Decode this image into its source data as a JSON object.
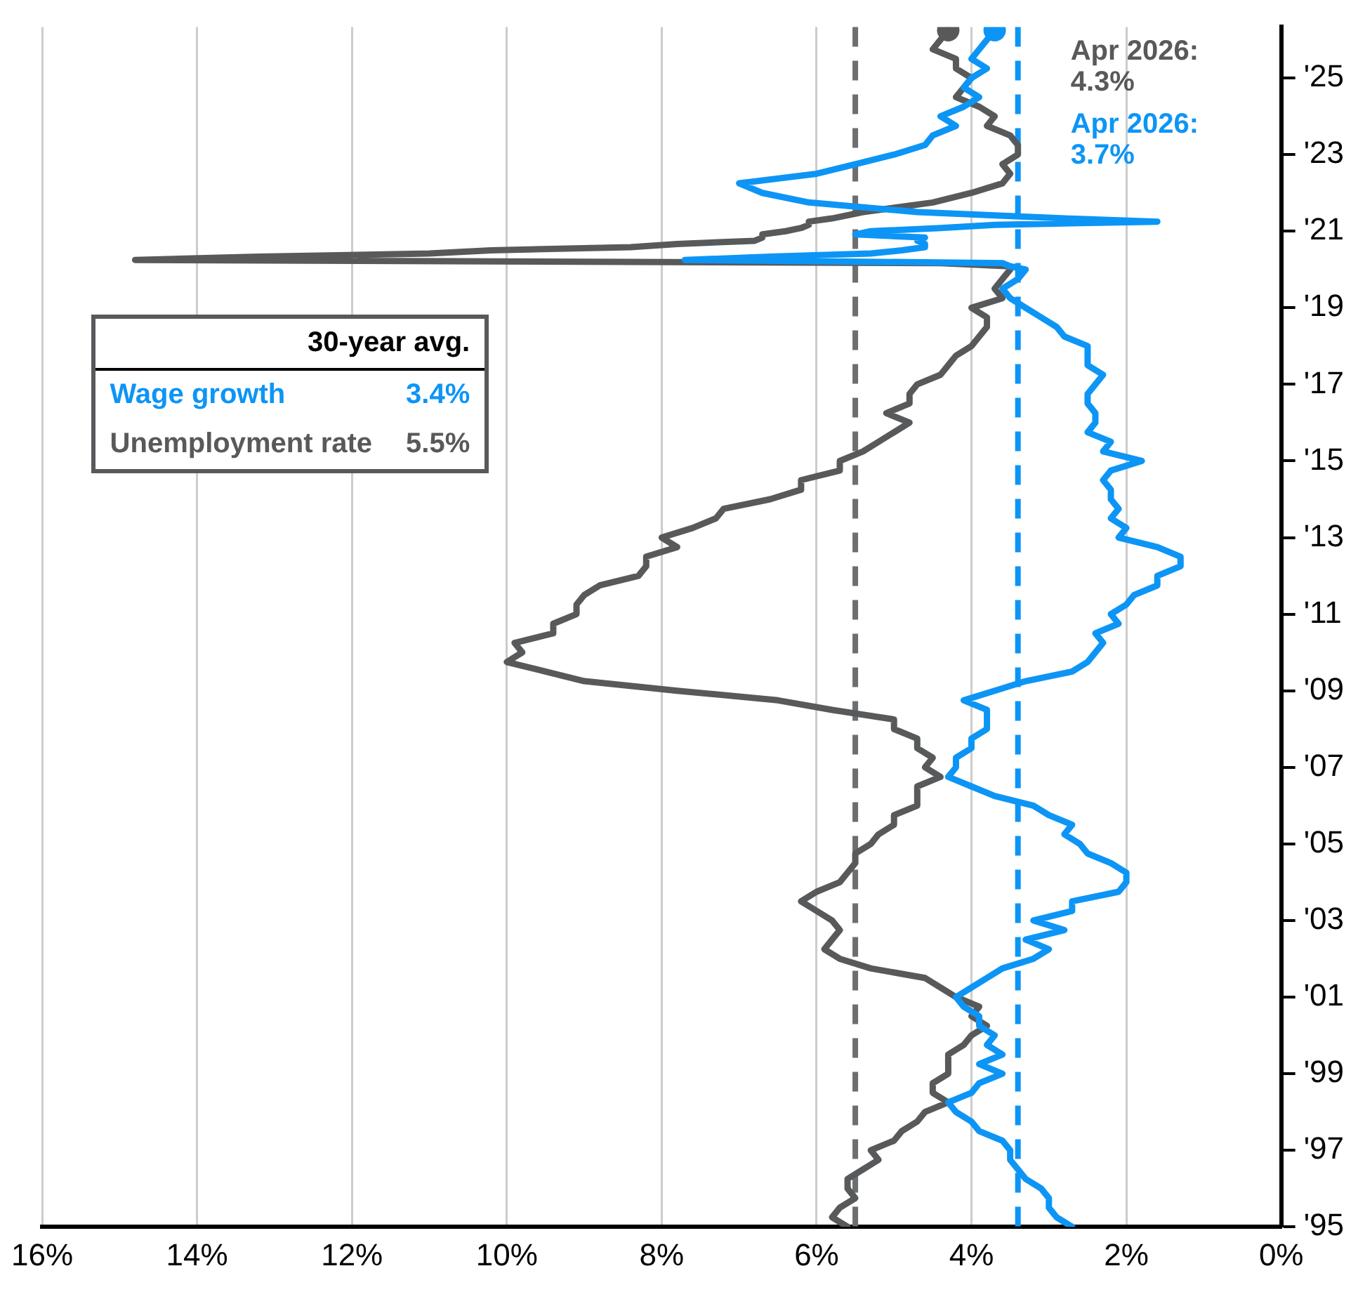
{
  "chart_data": {
    "type": "line",
    "orientation": "horizontal",
    "x": [
      "1995-01",
      "1995-04",
      "1995-07",
      "1995-10",
      "1996-01",
      "1996-04",
      "1996-07",
      "1996-10",
      "1997-01",
      "1997-04",
      "1997-07",
      "1997-10",
      "1998-01",
      "1998-04",
      "1998-07",
      "1998-10",
      "1999-01",
      "1999-04",
      "1999-07",
      "1999-10",
      "2000-01",
      "2000-04",
      "2000-07",
      "2000-10",
      "2001-01",
      "2001-04",
      "2001-07",
      "2001-10",
      "2002-01",
      "2002-04",
      "2002-07",
      "2002-10",
      "2003-01",
      "2003-04",
      "2003-07",
      "2003-10",
      "2004-01",
      "2004-04",
      "2004-07",
      "2004-10",
      "2005-01",
      "2005-04",
      "2005-07",
      "2005-10",
      "2006-01",
      "2006-04",
      "2006-07",
      "2006-10",
      "2007-01",
      "2007-04",
      "2007-07",
      "2007-10",
      "2008-01",
      "2008-04",
      "2008-07",
      "2008-10",
      "2009-01",
      "2009-04",
      "2009-07",
      "2009-10",
      "2010-01",
      "2010-04",
      "2010-07",
      "2010-10",
      "2011-01",
      "2011-04",
      "2011-07",
      "2011-10",
      "2012-01",
      "2012-04",
      "2012-07",
      "2012-10",
      "2013-01",
      "2013-04",
      "2013-07",
      "2013-10",
      "2014-01",
      "2014-04",
      "2014-07",
      "2014-10",
      "2015-01",
      "2015-04",
      "2015-07",
      "2015-10",
      "2016-01",
      "2016-04",
      "2016-07",
      "2016-10",
      "2017-01",
      "2017-04",
      "2017-07",
      "2017-10",
      "2018-01",
      "2018-04",
      "2018-07",
      "2018-10",
      "2019-01",
      "2019-04",
      "2019-07",
      "2019-10",
      "2020-01",
      "2020-02",
      "2020-03",
      "2020-04",
      "2020-05",
      "2020-06",
      "2020-07",
      "2020-08",
      "2020-09",
      "2020-10",
      "2020-11",
      "2020-12",
      "2021-01",
      "2021-02",
      "2021-03",
      "2021-04",
      "2021-05",
      "2021-07",
      "2021-10",
      "2022-01",
      "2022-04",
      "2022-07",
      "2022-10",
      "2023-01",
      "2023-04",
      "2023-07",
      "2023-10",
      "2024-01",
      "2024-04",
      "2024-07",
      "2024-10",
      "2025-01",
      "2025-04",
      "2025-07",
      "2025-10",
      "2026-01",
      "2026-04"
    ],
    "series": [
      {
        "name": "Wage growth",
        "color": "#0d95f5",
        "values": [
          2.7,
          2.9,
          3.0,
          3.0,
          3.1,
          3.3,
          3.4,
          3.5,
          3.5,
          3.6,
          3.9,
          4.0,
          4.2,
          4.3,
          4.0,
          3.9,
          3.6,
          3.9,
          3.6,
          3.8,
          3.7,
          3.9,
          3.9,
          4.1,
          4.2,
          4.0,
          3.8,
          3.6,
          3.2,
          3.0,
          3.3,
          2.8,
          3.2,
          2.7,
          2.7,
          2.1,
          2.0,
          2.0,
          2.2,
          2.5,
          2.6,
          2.8,
          2.7,
          3.0,
          3.2,
          3.7,
          4.0,
          4.3,
          4.2,
          4.2,
          4.0,
          4.0,
          3.8,
          3.8,
          3.8,
          4.1,
          3.7,
          3.3,
          2.7,
          2.5,
          2.4,
          2.3,
          2.4,
          2.1,
          2.2,
          2.0,
          1.9,
          1.6,
          1.6,
          1.3,
          1.3,
          1.6,
          2.1,
          2.0,
          2.2,
          2.1,
          2.2,
          2.2,
          2.3,
          2.2,
          1.8,
          2.3,
          2.2,
          2.5,
          2.4,
          2.4,
          2.5,
          2.5,
          2.4,
          2.3,
          2.5,
          2.5,
          2.5,
          2.8,
          2.9,
          3.1,
          3.3,
          3.5,
          3.6,
          3.4,
          3.3,
          3.5,
          3.6,
          7.7,
          6.6,
          5.3,
          4.9,
          4.6,
          4.6,
          4.7,
          4.6,
          5.5,
          5.3,
          4.4,
          3.7,
          1.6,
          2.8,
          4.7,
          6.1,
          6.7,
          7.0,
          6.0,
          5.5,
          5.0,
          4.6,
          4.5,
          4.2,
          4.4,
          4.1,
          3.9,
          4.1,
          4.0,
          3.8,
          4.0,
          3.9,
          3.8,
          3.7
        ]
      },
      {
        "name": "Unemployment rate",
        "color": "#58595b",
        "values": [
          5.6,
          5.8,
          5.7,
          5.5,
          5.6,
          5.6,
          5.4,
          5.2,
          5.3,
          5.0,
          4.9,
          4.7,
          4.6,
          4.3,
          4.5,
          4.5,
          4.3,
          4.3,
          4.3,
          4.1,
          4.0,
          3.8,
          4.0,
          3.9,
          4.2,
          4.4,
          4.6,
          5.3,
          5.7,
          5.9,
          5.8,
          5.7,
          5.8,
          6.0,
          6.2,
          6.0,
          5.7,
          5.6,
          5.5,
          5.5,
          5.3,
          5.2,
          5.0,
          5.0,
          4.7,
          4.7,
          4.7,
          4.4,
          4.6,
          4.5,
          4.7,
          4.7,
          5.0,
          5.0,
          5.8,
          6.5,
          7.8,
          9.0,
          9.5,
          10.0,
          9.8,
          9.9,
          9.4,
          9.4,
          9.1,
          9.1,
          9.0,
          8.8,
          8.3,
          8.2,
          8.2,
          7.8,
          8.0,
          7.6,
          7.3,
          7.2,
          6.6,
          6.2,
          6.2,
          5.7,
          5.7,
          5.4,
          5.2,
          5.0,
          4.8,
          5.1,
          4.8,
          4.8,
          4.7,
          4.4,
          4.3,
          4.2,
          4.0,
          3.9,
          3.8,
          3.8,
          4.0,
          3.6,
          3.7,
          3.6,
          3.5,
          3.5,
          4.4,
          14.8,
          13.2,
          11.0,
          10.2,
          8.4,
          7.8,
          6.8,
          6.7,
          6.7,
          6.4,
          6.2,
          6.1,
          6.1,
          5.8,
          5.4,
          4.5,
          4.0,
          3.6,
          3.5,
          3.6,
          3.4,
          3.4,
          3.5,
          3.8,
          3.7,
          3.9,
          4.2,
          4.1,
          4.0,
          4.2,
          4.2,
          4.5,
          4.4,
          4.3
        ]
      }
    ],
    "xlim": [
      16,
      0
    ],
    "xticks": [
      {
        "value": 16,
        "label": "16%"
      },
      {
        "value": 14,
        "label": "14%"
      },
      {
        "value": 12,
        "label": "12%"
      },
      {
        "value": 10,
        "label": "10%"
      },
      {
        "value": 8,
        "label": "8%"
      },
      {
        "value": 6,
        "label": "6%"
      },
      {
        "value": 4,
        "label": "4%"
      },
      {
        "value": 2,
        "label": "2%"
      },
      {
        "value": 0,
        "label": "0%"
      }
    ],
    "ylim": [
      "1995-01",
      "2026-05"
    ],
    "yticks": [
      {
        "value": "1995-01",
        "label": "'95"
      },
      {
        "value": "1997-01",
        "label": "'97"
      },
      {
        "value": "1999-01",
        "label": "'99"
      },
      {
        "value": "2001-01",
        "label": "'01"
      },
      {
        "value": "2003-01",
        "label": "'03"
      },
      {
        "value": "2005-01",
        "label": "'05"
      },
      {
        "value": "2007-01",
        "label": "'07"
      },
      {
        "value": "2009-01",
        "label": "'09"
      },
      {
        "value": "2011-01",
        "label": "'11"
      },
      {
        "value": "2013-01",
        "label": "'13"
      },
      {
        "value": "2015-01",
        "label": "'15"
      },
      {
        "value": "2017-01",
        "label": "'17"
      },
      {
        "value": "2019-01",
        "label": "'19"
      },
      {
        "value": "2021-01",
        "label": "'21"
      },
      {
        "value": "2023-01",
        "label": "'23"
      },
      {
        "value": "2025-01",
        "label": "'25"
      }
    ],
    "grid": "x",
    "legend": "left",
    "legend_title": "30-year avg.",
    "marker": "none",
    "line_style": "solid",
    "ref_lines": [
      {
        "axis": "x",
        "value": 3.4,
        "color": "#0d95f5",
        "line_style": "dashed"
      },
      {
        "axis": "x",
        "value": 5.5,
        "color": "#6d6e70",
        "line_style": "dashed"
      }
    ],
    "annotations": [
      "3.4%",
      "5.5%",
      "Apr 2026:\n3.7%",
      "Apr 2026:\n4.3%"
    ]
  }
}
